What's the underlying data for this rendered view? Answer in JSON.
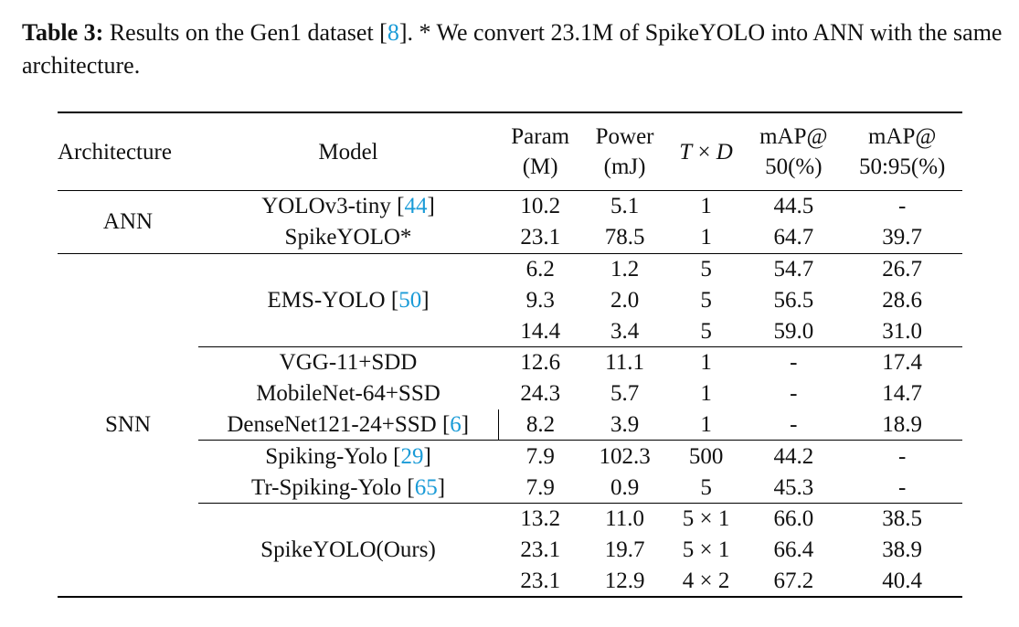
{
  "caption": {
    "label": "Table 3:",
    "text_a": " Results on the Gen1 dataset [",
    "cite": "8",
    "text_b": "]. * We convert 23.1M of SpikeYOLO into ANN with the same architecture."
  },
  "headers": {
    "architecture": "Architecture",
    "model": "Model",
    "param_1": "Param",
    "param_2": "(M)",
    "power_1": "Power",
    "power_2": "(mJ)",
    "t_var": "T",
    "t_x": " × ",
    "d_var": "D",
    "map50_1": "mAP@",
    "map50_2": "50(%)",
    "map5095_1": "mAP@",
    "map5095_2": "50:95(%)"
  },
  "groups": {
    "ann": "ANN",
    "snn": "SNN"
  },
  "models": {
    "yolov3": {
      "name": "YOLOv3-tiny [",
      "cite": "44",
      "end": "]"
    },
    "spikeyolo_star": {
      "name": "SpikeYOLO*"
    },
    "emsyolo": {
      "name": "EMS-YOLO [",
      "cite": "50",
      "end": "]"
    },
    "vgg": {
      "name": "VGG-11+SDD"
    },
    "mobilenet": {
      "name": "MobileNet-64+SSD"
    },
    "densenet": {
      "name": "DenseNet121-24+SSD [",
      "cite": "6",
      "end": "]"
    },
    "spikingyolo": {
      "name": "Spiking-Yolo [",
      "cite": "29",
      "end": "]"
    },
    "trspiking": {
      "name": "Tr-Spiking-Yolo [",
      "cite": "65",
      "end": "]"
    },
    "ours": {
      "name": "SpikeYOLO(Ours)"
    }
  },
  "rows": [
    {
      "param": "10.2",
      "power": "5.1",
      "td": "1",
      "map50": "44.5",
      "map5095": "-"
    },
    {
      "param": "23.1",
      "power": "78.5",
      "td": "1",
      "map50": "64.7",
      "map5095": "39.7"
    },
    {
      "param": "6.2",
      "power": "1.2",
      "td": "5",
      "map50": "54.7",
      "map5095": "26.7"
    },
    {
      "param": "9.3",
      "power": "2.0",
      "td": "5",
      "map50": "56.5",
      "map5095": "28.6"
    },
    {
      "param": "14.4",
      "power": "3.4",
      "td": "5",
      "map50": "59.0",
      "map5095": "31.0"
    },
    {
      "param": "12.6",
      "power": "11.1",
      "td": "1",
      "map50": "-",
      "map5095": "17.4"
    },
    {
      "param": "24.3",
      "power": "5.7",
      "td": "1",
      "map50": "-",
      "map5095": "14.7"
    },
    {
      "param": "8.2",
      "power": "3.9",
      "td": "1",
      "map50": "-",
      "map5095": "18.9"
    },
    {
      "param": "7.9",
      "power": "102.3",
      "td": "500",
      "map50": "44.2",
      "map5095": "-"
    },
    {
      "param": "7.9",
      "power": "0.9",
      "td": "5",
      "map50": "45.3",
      "map5095": "-"
    },
    {
      "param": "13.2",
      "power": "11.0",
      "td": "5 × 1",
      "map50": "66.0",
      "map5095": "38.5"
    },
    {
      "param": "23.1",
      "power": "19.7",
      "td": "5 × 1",
      "map50": "66.4",
      "map5095": "38.9"
    },
    {
      "param": "23.1",
      "power": "12.9",
      "td": "4 × 2",
      "map50": "67.2",
      "map5095": "40.4"
    }
  ]
}
